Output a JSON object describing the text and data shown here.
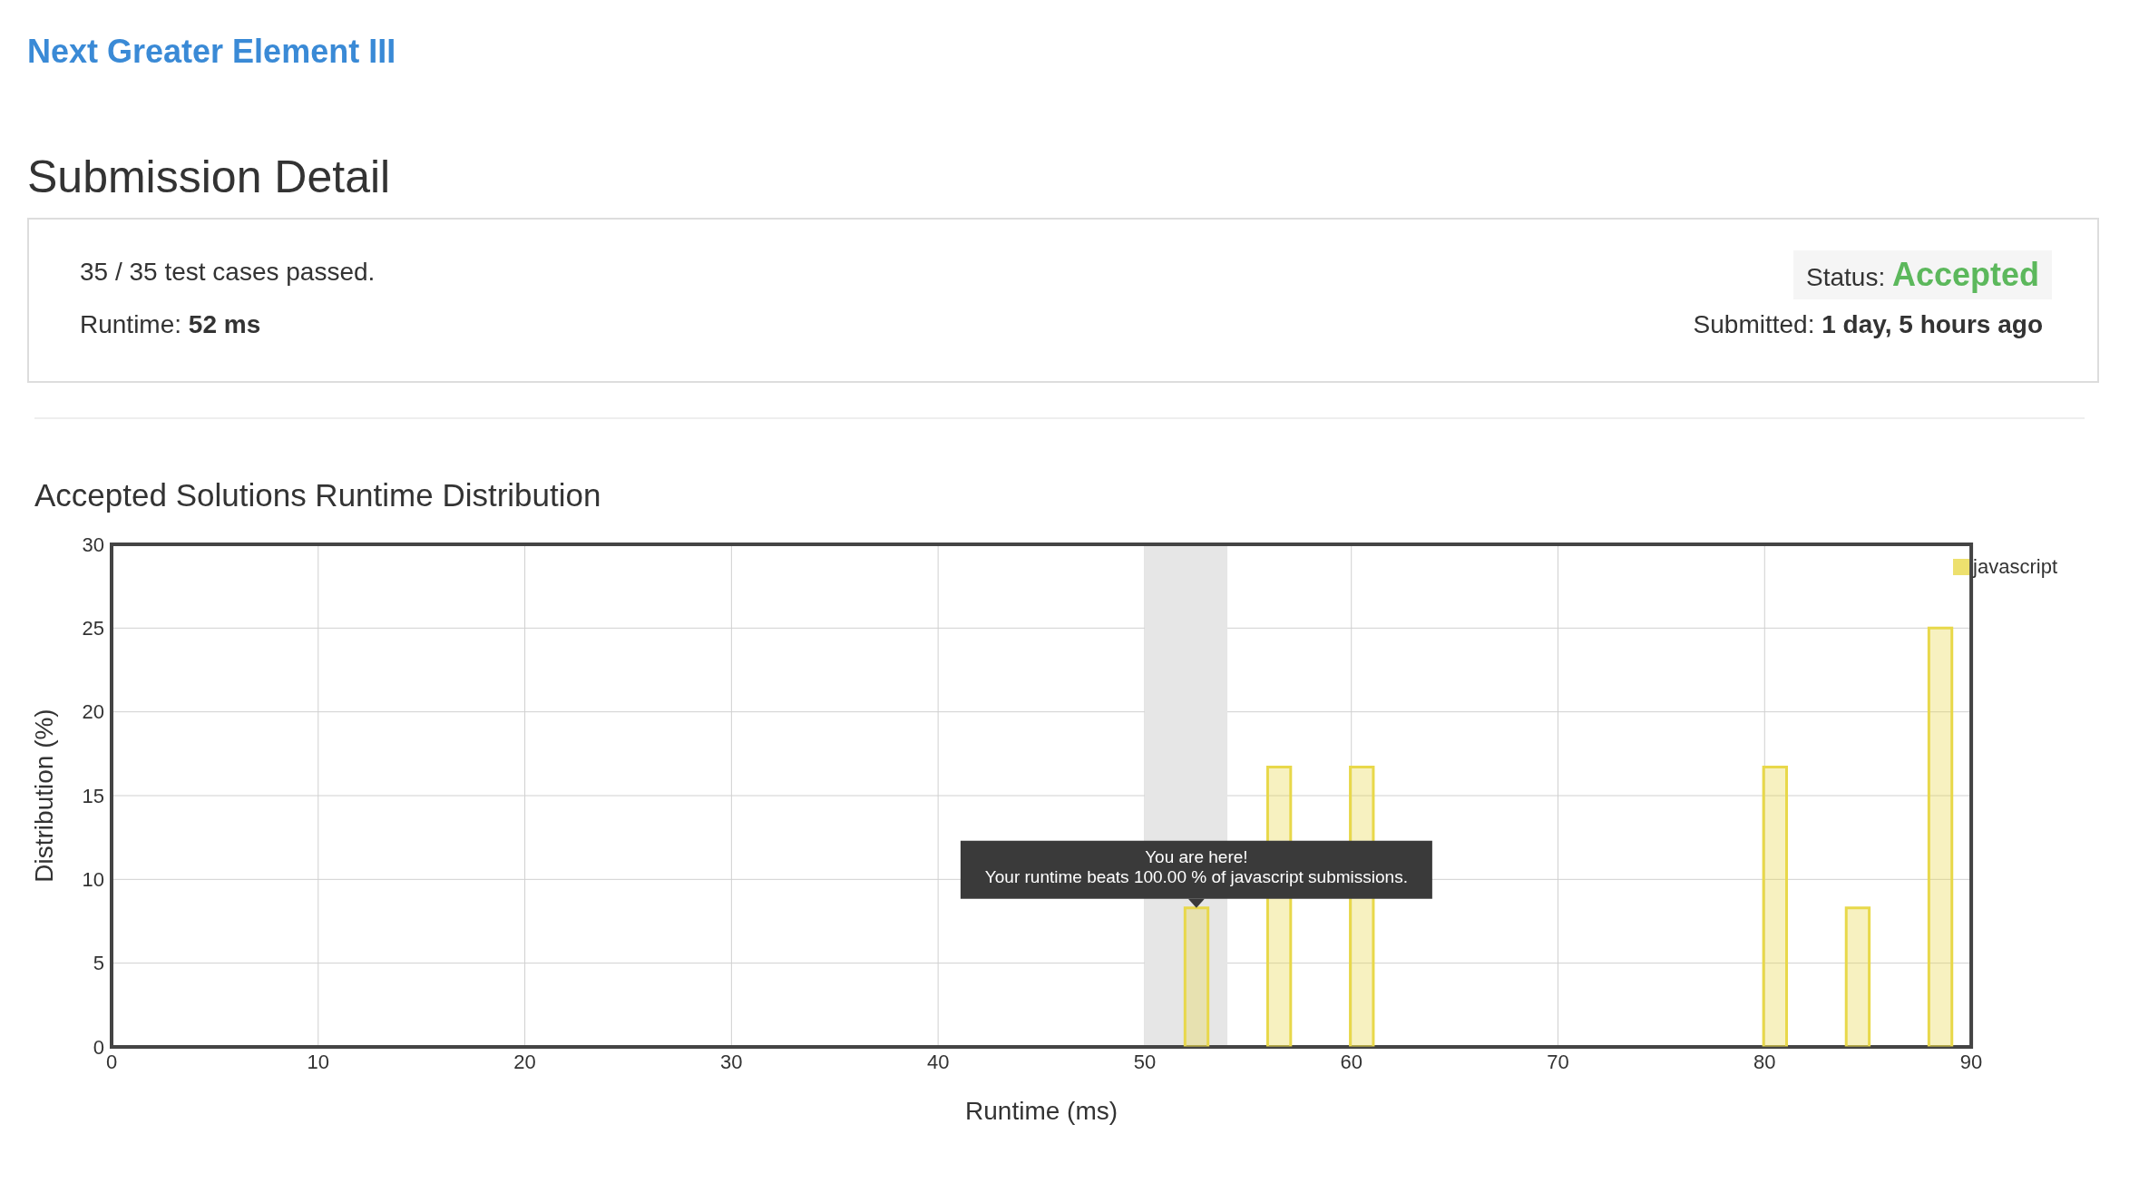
{
  "chart_data": {
    "type": "bar",
    "title": "Accepted Solutions Runtime Distribution",
    "xlabel": "Runtime (ms)",
    "ylabel": "Distribution (%)",
    "x": [
      52.5,
      56.5,
      60.5,
      80.5,
      84.5,
      88.5
    ],
    "series": [
      {
        "name": "javascript",
        "color": "#e8d84a",
        "values": [
          8.3,
          16.7,
          16.7,
          16.7,
          8.3,
          25
        ]
      }
    ],
    "xlim": [
      0,
      90
    ],
    "xticks": [
      0,
      10,
      20,
      30,
      40,
      50,
      60,
      70,
      80,
      90
    ],
    "ylim": [
      0,
      30
    ],
    "yticks": [
      0,
      5,
      10,
      15,
      20,
      25,
      30
    ],
    "grid": true,
    "legend": "top right",
    "bands": [
      {
        "axis": "x",
        "from": 50,
        "to": 54,
        "color": "#e6e6e6"
      }
    ],
    "annotations": [
      "Next Greater Element III",
      "Submission Detail",
      "35 / 35 test cases passed.",
      "Runtime: 52 ms",
      "Status: Accepted",
      "Submitted: 1 day, 5 hours ago",
      {
        "text": "You are here!\nYour runtime beats 100.00 % of javascript submissions.",
        "x": 52.5,
        "y": 8.3
      }
    ]
  }
}
